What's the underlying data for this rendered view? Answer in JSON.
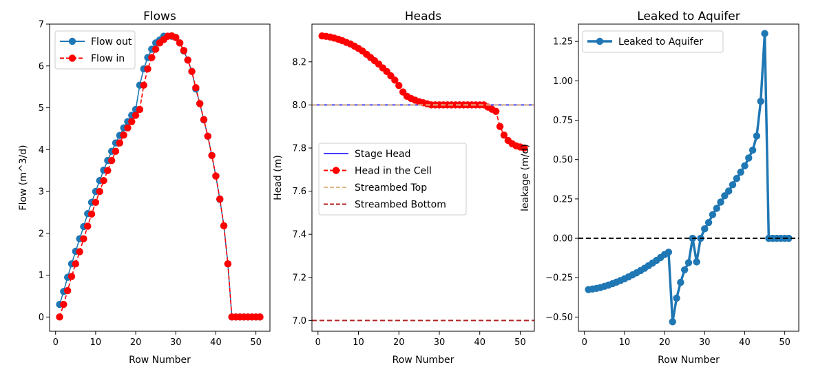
{
  "chart_data": [
    {
      "type": "line",
      "title": "Flows",
      "xlabel": "Row Number",
      "ylabel": "Flow (m^3/d)",
      "xlim": [
        -1.5,
        53.5
      ],
      "ylim": [
        -0.34,
        7.0
      ],
      "xticks": [
        0,
        10,
        20,
        30,
        40,
        50
      ],
      "yticks": [
        0,
        1,
        2,
        3,
        4,
        5,
        6,
        7
      ],
      "legend": "top-left",
      "series": [
        {
          "name": "Flow out",
          "color": "#1f77b4",
          "style": "solid-marker",
          "x": [
            1,
            2,
            3,
            4,
            5,
            6,
            7,
            8,
            9,
            10,
            11,
            12,
            13,
            14,
            15,
            16,
            17,
            18,
            19,
            20,
            21,
            22,
            23,
            24,
            25,
            26,
            27,
            28,
            29,
            30,
            31,
            32,
            33,
            34,
            35,
            36,
            37,
            38,
            39,
            40,
            41,
            42,
            43,
            44,
            45,
            46,
            47,
            48,
            49,
            50,
            51
          ],
          "y": [
            0.3,
            0.61,
            0.95,
            1.27,
            1.57,
            1.87,
            2.16,
            2.47,
            2.74,
            3.0,
            3.26,
            3.51,
            3.74,
            3.96,
            4.16,
            4.34,
            4.52,
            4.67,
            4.82,
            4.96,
            5.54,
            5.93,
            6.2,
            6.4,
            6.55,
            6.62,
            6.71,
            6.71,
            6.71,
            6.68,
            6.55,
            6.36,
            6.14,
            5.87,
            5.45,
            5.1,
            4.71,
            4.32,
            3.86,
            3.37,
            2.81,
            2.18,
            1.27,
            0.0,
            0.0,
            0.0,
            0.0,
            0.0,
            0.0,
            0.0,
            0.0
          ]
        },
        {
          "name": "Flow in",
          "color": "#ff0000",
          "style": "dashed-marker",
          "x": [
            1,
            2,
            3,
            4,
            5,
            6,
            7,
            8,
            9,
            10,
            11,
            12,
            13,
            14,
            15,
            16,
            17,
            18,
            19,
            20,
            21,
            22,
            23,
            24,
            25,
            26,
            27,
            28,
            29,
            30,
            31,
            32,
            33,
            34,
            35,
            36,
            37,
            38,
            39,
            40,
            41,
            42,
            43,
            44,
            45,
            46,
            47,
            48,
            49,
            50,
            51
          ],
          "y": [
            0.0,
            0.3,
            0.63,
            0.97,
            1.27,
            1.56,
            1.87,
            2.17,
            2.46,
            2.74,
            3.0,
            3.26,
            3.5,
            3.74,
            3.96,
            4.16,
            4.35,
            4.52,
            4.67,
            4.82,
            4.96,
            5.54,
            5.93,
            6.2,
            6.4,
            6.55,
            6.63,
            6.71,
            6.72,
            6.68,
            6.55,
            6.37,
            6.14,
            5.87,
            5.48,
            5.1,
            4.72,
            4.32,
            3.86,
            3.37,
            2.82,
            2.18,
            1.27,
            0.0,
            0.0,
            0.0,
            0.0,
            0.0,
            0.0,
            0.0,
            0.0
          ]
        }
      ]
    },
    {
      "type": "line",
      "title": "Heads",
      "xlabel": "Row Number",
      "ylabel": "Head (m)",
      "xlim": [
        -1.5,
        53.5
      ],
      "ylim": [
        6.95,
        8.375
      ],
      "xticks": [
        0,
        10,
        20,
        30,
        40,
        50
      ],
      "yticks": [
        7.0,
        7.2,
        7.4,
        7.6,
        7.8,
        8.0,
        8.2
      ],
      "legend": "center-left",
      "series": [
        {
          "name": "Stage Head",
          "color": "#0000ff",
          "style": "hline",
          "y": 8.0
        },
        {
          "name": "Head in the Cell",
          "color": "#ff0000",
          "style": "dashed-marker",
          "x": [
            1,
            2,
            3,
            4,
            5,
            6,
            7,
            8,
            9,
            10,
            11,
            12,
            13,
            14,
            15,
            16,
            17,
            18,
            19,
            20,
            21,
            22,
            23,
            24,
            25,
            26,
            27,
            28,
            29,
            30,
            31,
            32,
            33,
            34,
            35,
            36,
            37,
            38,
            39,
            40,
            41,
            42,
            43,
            44,
            45,
            46,
            47,
            48,
            49,
            50,
            51
          ],
          "y": [
            8.32,
            8.318,
            8.315,
            8.31,
            8.305,
            8.298,
            8.29,
            8.283,
            8.273,
            8.262,
            8.25,
            8.235,
            8.22,
            8.205,
            8.19,
            8.172,
            8.155,
            8.135,
            8.115,
            8.09,
            8.06,
            8.04,
            8.03,
            8.022,
            8.015,
            8.01,
            8.005,
            8.0,
            8.0,
            8.0,
            8.0,
            8.0,
            8.0,
            8.0,
            8.0,
            8.0,
            8.0,
            8.0,
            8.0,
            8.0,
            8.0,
            7.99,
            7.98,
            7.97,
            7.9,
            7.86,
            7.835,
            7.82,
            7.81,
            7.805,
            7.8
          ]
        },
        {
          "name": "Streambed Top",
          "color": "#deb887",
          "style": "dashed-hline",
          "y": 8.0
        },
        {
          "name": "Streambed Bottom",
          "color": "#b22222",
          "style": "dashed-hline",
          "y": 7.0
        }
      ]
    },
    {
      "type": "line",
      "title": "Leaked to Aquifer",
      "xlabel": "Row Number",
      "ylabel": "leakage (m/d)",
      "xlim": [
        -1.5,
        53.5
      ],
      "ylim": [
        -0.59,
        1.36
      ],
      "xticks": [
        0,
        10,
        20,
        30,
        40,
        50
      ],
      "yticks": [
        -0.5,
        -0.25,
        0.0,
        0.25,
        0.5,
        0.75,
        1.0,
        1.25
      ],
      "yticklabels": [
        "−0.50",
        "−0.25",
        "0.00",
        "0.25",
        "0.50",
        "0.75",
        "1.00",
        "1.25"
      ],
      "legend": "top-left",
      "series": [
        {
          "name": "Leaked to Aquifer",
          "color": "#1f77b4",
          "style": "thick-marker",
          "x": [
            1,
            2,
            3,
            4,
            5,
            6,
            7,
            8,
            9,
            10,
            11,
            12,
            13,
            14,
            15,
            16,
            17,
            18,
            19,
            20,
            21,
            22,
            23,
            24,
            25,
            26,
            27,
            28,
            29,
            30,
            31,
            32,
            33,
            34,
            35,
            36,
            37,
            38,
            39,
            40,
            41,
            42,
            43,
            44,
            45,
            46,
            47,
            48,
            49,
            50,
            51
          ],
          "y": [
            -0.325,
            -0.322,
            -0.318,
            -0.312,
            -0.305,
            -0.297,
            -0.288,
            -0.278,
            -0.268,
            -0.257,
            -0.245,
            -0.232,
            -0.219,
            -0.205,
            -0.19,
            -0.174,
            -0.157,
            -0.14,
            -0.122,
            -0.103,
            -0.088,
            -0.53,
            -0.38,
            -0.28,
            -0.2,
            -0.155,
            0.0,
            -0.15,
            0.0,
            0.06,
            0.1,
            0.15,
            0.19,
            0.23,
            0.27,
            0.3,
            0.34,
            0.38,
            0.42,
            0.46,
            0.51,
            0.56,
            0.65,
            0.87,
            1.3,
            0.0,
            0.0,
            0.0,
            0.0,
            0.0,
            0.0
          ]
        },
        {
          "name": "",
          "color": "#000000",
          "style": "dashed-hline",
          "y": 0.0
        }
      ]
    }
  ]
}
